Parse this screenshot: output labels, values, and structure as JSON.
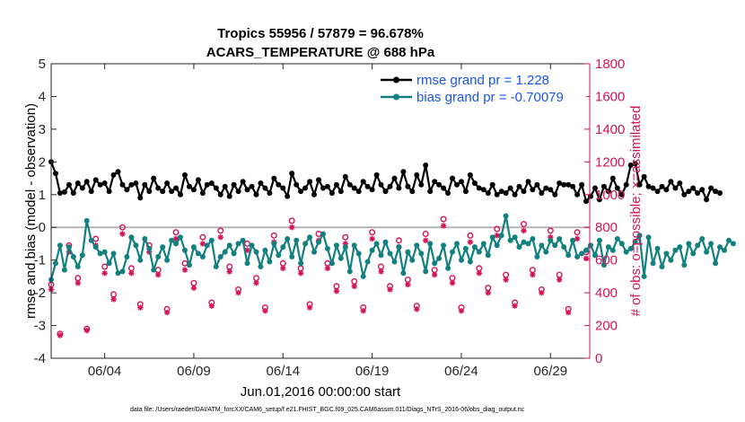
{
  "chart_data": {
    "type": "line",
    "title_line1": "Tropics 55956 / 57879 = 96.678%",
    "title_line2": "ACARS_TEMPERATURE @ 688 hPa",
    "xlabel": "Jun.01,2016 00:00:00 start",
    "ylabel_left": "rmse and bias (model - observation)",
    "ylabel_right": "# of obs: o=possible; ×=assimilated",
    "footnote": "data file: /Users/raeder/DAI/ATM_forcXX/CAM6_setup/f.e21.FHIST_BGC.f09_025.CAM6assim.011/Diags_NTrS_2016-06/obs_diag_output.nc",
    "xlim": [
      1,
      31.2
    ],
    "ylim_left": [
      -4,
      5
    ],
    "ylim_right": [
      0,
      1800
    ],
    "x_ticks": [
      4,
      9,
      14,
      19,
      24,
      29
    ],
    "x_tick_labels": [
      "06/04",
      "06/09",
      "06/14",
      "06/19",
      "06/24",
      "06/29"
    ],
    "y_left_ticks": [
      -4,
      -3,
      -2,
      -1,
      0,
      1,
      2,
      3,
      4,
      5
    ],
    "y_left_tick_labels": [
      "-4",
      "-3",
      "-2",
      "-1",
      "0",
      "1",
      "2",
      "3",
      "4",
      "5"
    ],
    "y_right_ticks": [
      0,
      200,
      400,
      600,
      800,
      1000,
      1200,
      1400,
      1600,
      1800
    ],
    "y_right_tick_labels": [
      "0",
      "200",
      "400",
      "600",
      "800",
      "1000",
      "1200",
      "1400",
      "1600",
      "1800"
    ],
    "series": [
      {
        "name": "rmse",
        "legend": "rmse grand pr = 1.228",
        "axis": "left",
        "color": "#000000",
        "legend_color": "#1a55e6",
        "x_start": 1.0,
        "x_step": 0.25,
        "values": [
          2.0,
          1.65,
          1.05,
          1.08,
          1.3,
          1.05,
          1.35,
          1.2,
          1.4,
          1.1,
          1.45,
          1.3,
          1.35,
          1.1,
          1.6,
          1.7,
          1.3,
          1.15,
          1.3,
          1.35,
          0.9,
          1.3,
          1.1,
          1.5,
          1.2,
          1.1,
          1.35,
          1.1,
          1.2,
          1.0,
          1.6,
          1.25,
          1.15,
          1.45,
          1.05,
          1.3,
          1.35,
          1.2,
          1.0,
          1.25,
          0.95,
          1.3,
          1.1,
          1.4,
          1.15,
          1.25,
          1.0,
          1.35,
          1.2,
          1.05,
          1.5,
          1.3,
          1.2,
          0.95,
          1.65,
          1.3,
          1.1,
          1.2,
          1.4,
          1.0,
          1.45,
          1.2,
          1.25,
          1.05,
          1.3,
          1.1,
          1.55,
          1.3,
          1.2,
          1.1,
          1.4,
          1.25,
          1.15,
          1.6,
          1.3,
          1.1,
          1.25,
          1.5,
          1.2,
          1.7,
          1.25,
          1.1,
          1.6,
          1.3,
          1.9,
          1.1,
          1.4,
          1.3,
          1.2,
          1.05,
          1.5,
          1.3,
          1.4,
          1.1,
          1.6,
          1.35,
          1.2,
          1.15,
          1.05,
          1.3,
          1.0,
          1.1,
          1.05,
          1.2,
          1.0,
          1.25,
          1.1,
          1.4,
          1.15,
          1.3,
          1.05,
          1.2,
          1.15,
          1.0,
          1.35,
          1.3,
          1.3,
          1.25,
          1.0,
          1.3,
          0.8,
          0.95,
          1.2,
          0.85,
          1.25,
          1.1,
          1.5,
          1.2,
          1.0,
          1.3,
          1.9,
          1.95,
          1.3,
          1.55,
          1.25,
          1.2,
          1.1,
          1.25,
          1.15,
          1.4,
          1.2,
          1.35,
          1.0,
          1.1,
          1.2,
          1.05,
          1.15,
          0.85,
          1.2,
          1.1,
          1.05
        ]
      },
      {
        "name": "bias",
        "legend": "bias grand pr = -0.70079",
        "axis": "left",
        "color": "#138080",
        "legend_color": "#1a55e6",
        "x_start": 1.0,
        "x_step": 0.25,
        "values": [
          -1.6,
          -1.1,
          -0.55,
          -1.3,
          -0.6,
          -0.9,
          -1.2,
          -0.85,
          0.2,
          -0.4,
          -0.6,
          -0.8,
          -0.75,
          -1.1,
          -0.8,
          -1.4,
          -1.35,
          -0.9,
          -0.3,
          -0.55,
          -1.0,
          -0.35,
          -0.65,
          -1.3,
          -0.9,
          -0.6,
          -1.0,
          -0.4,
          -0.5,
          -0.3,
          -0.7,
          -1.15,
          -0.6,
          -0.8,
          -0.9,
          -0.55,
          -0.4,
          -1.2,
          -0.9,
          -0.75,
          -0.55,
          -0.8,
          -0.5,
          -0.4,
          -1.1,
          -0.55,
          -0.75,
          -1.2,
          -0.7,
          -1.05,
          -0.5,
          -0.85,
          -0.6,
          -0.35,
          -0.9,
          -0.4,
          -1.1,
          -0.5,
          -0.3,
          -0.75,
          -0.45,
          -0.2,
          -0.65,
          -1.1,
          -0.55,
          -0.95,
          -0.6,
          -1.35,
          -0.55,
          -0.8,
          -1.5,
          -1.05,
          -0.7,
          -0.5,
          -0.85,
          -0.45,
          -0.8,
          -1.05,
          -0.6,
          -1.4,
          -0.75,
          -1.0,
          -0.55,
          -0.8,
          -1.35,
          -0.5,
          -1.1,
          -0.95,
          -0.55,
          -1.25,
          -0.75,
          -0.5,
          -1.0,
          -0.65,
          -1.05,
          -0.6,
          -0.75,
          -0.5,
          -0.85,
          -0.3,
          -0.55,
          -0.25,
          0.35,
          -0.4,
          -0.3,
          -0.6,
          -0.45,
          -0.5,
          -0.35,
          -0.9,
          -0.55,
          -0.75,
          -0.4,
          -0.55,
          -0.35,
          -0.6,
          -0.85,
          -0.4,
          -0.9,
          -0.8,
          -0.7,
          -0.55,
          -0.85,
          -0.4,
          -1.15,
          -0.6,
          -0.7,
          -0.35,
          -0.5,
          -0.75,
          -0.65,
          -0.45,
          -0.25,
          -1.5,
          -0.3,
          -1.1,
          -0.65,
          -1.2,
          -0.8,
          -1.0,
          -0.7,
          -0.6,
          -1.15,
          -0.5,
          -0.8,
          -0.55,
          -0.35,
          -0.75,
          -0.5,
          -1.1,
          -0.6,
          -0.7,
          -0.4,
          -0.5
        ]
      },
      {
        "name": "obs possible",
        "axis": "right",
        "color": "#d4145a",
        "marker": "o",
        "x_start": 1.0,
        "x_step": 0.5,
        "values": [
          450,
          150,
          690,
          490,
          180,
          730,
          560,
          390,
          800,
          550,
          330,
          690,
          540,
          300,
          770,
          580,
          460,
          740,
          340,
          780,
          560,
          420,
          700,
          490,
          310,
          750,
          580,
          840,
          550,
          330,
          760,
          580,
          440,
          740,
          470,
          310,
          770,
          560,
          440,
          720,
          480,
          320,
          760,
          540,
          850,
          490,
          310,
          750,
          550,
          430,
          790,
          510,
          340,
          820,
          540,
          420,
          780,
          510,
          300,
          770,
          650
        ]
      },
      {
        "name": "obs assimilated",
        "axis": "right",
        "color": "#d4145a",
        "marker": "*",
        "x_start": 1.0,
        "x_step": 0.5,
        "values": [
          420,
          140,
          650,
          460,
          170,
          690,
          520,
          360,
          760,
          520,
          310,
          650,
          510,
          280,
          730,
          540,
          430,
          700,
          320,
          740,
          530,
          400,
          660,
          460,
          290,
          710,
          550,
          800,
          520,
          310,
          720,
          550,
          410,
          700,
          440,
          290,
          730,
          530,
          420,
          680,
          450,
          300,
          720,
          510,
          810,
          460,
          290,
          710,
          520,
          400,
          750,
          480,
          320,
          780,
          510,
          400,
          740,
          480,
          280,
          730,
          610
        ]
      }
    ]
  }
}
